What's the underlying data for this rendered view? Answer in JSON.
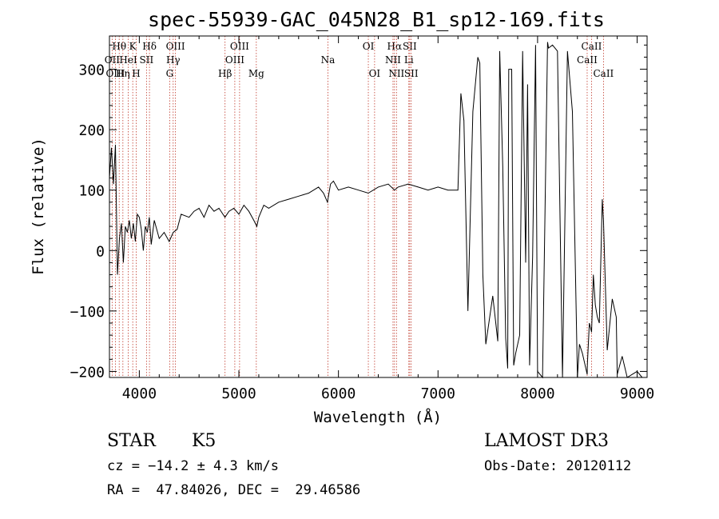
{
  "chart_data": {
    "type": "line",
    "title": "spec-55939-GAC_045N28_B1_sp12-169.fits",
    "xlabel": "Wavelength (Å)",
    "ylabel": "Flux (relative)",
    "xlim": [
      3700,
      9100
    ],
    "ylim": [
      -210,
      355
    ],
    "xticks": [
      4000,
      5000,
      6000,
      7000,
      8000,
      9000
    ],
    "yticks": [
      -200,
      -100,
      0,
      100,
      200,
      300
    ],
    "series": [
      {
        "name": "spectrum",
        "x": [
          3700,
          3720,
          3740,
          3760,
          3780,
          3800,
          3820,
          3840,
          3860,
          3880,
          3900,
          3920,
          3940,
          3960,
          3980,
          4000,
          4020,
          4040,
          4060,
          4080,
          4100,
          4120,
          4150,
          4200,
          4250,
          4300,
          4340,
          4380,
          4420,
          4500,
          4550,
          4600,
          4650,
          4700,
          4750,
          4800,
          4860,
          4900,
          4950,
          5000,
          5050,
          5100,
          5150,
          5180,
          5200,
          5250,
          5300,
          5400,
          5500,
          5600,
          5700,
          5800,
          5850,
          5890,
          5920,
          5950,
          6000,
          6100,
          6200,
          6300,
          6400,
          6500,
          6563,
          6600,
          6700,
          6800,
          6900,
          7000,
          7100,
          7200,
          7230,
          7260,
          7300,
          7350,
          7400,
          7420,
          7450,
          7480,
          7550,
          7600,
          7620,
          7650,
          7680,
          7700,
          7710,
          7740,
          7760,
          7780,
          7820,
          7850,
          7880,
          7900,
          7920,
          7950,
          7980,
          8000,
          8050,
          8100,
          8110,
          8150,
          8200,
          8250,
          8300,
          8350,
          8400,
          8420,
          8450,
          8498,
          8500,
          8520,
          8542,
          8560,
          8580,
          8600,
          8620,
          8650,
          8662,
          8700,
          8750,
          8790,
          8800,
          8850,
          8900,
          8950,
          9000,
          9050
        ],
        "y": [
          120,
          170,
          110,
          175,
          -40,
          20,
          45,
          -20,
          40,
          30,
          50,
          20,
          45,
          15,
          60,
          55,
          35,
          0,
          40,
          30,
          55,
          10,
          50,
          20,
          30,
          15,
          30,
          35,
          60,
          55,
          65,
          70,
          55,
          75,
          65,
          70,
          55,
          65,
          70,
          60,
          75,
          65,
          50,
          40,
          55,
          75,
          70,
          80,
          85,
          90,
          95,
          105,
          95,
          80,
          110,
          115,
          100,
          105,
          100,
          95,
          105,
          110,
          100,
          105,
          110,
          105,
          100,
          105,
          100,
          100,
          260,
          215,
          -100,
          230,
          320,
          310,
          -40,
          -155,
          -75,
          -150,
          330,
          140,
          -145,
          -195,
          300,
          300,
          -190,
          -170,
          -140,
          330,
          -20,
          275,
          -190,
          -10,
          340,
          -200,
          -210,
          345,
          335,
          340,
          330,
          -210,
          330,
          230,
          -210,
          -155,
          -170,
          -205,
          -190,
          -120,
          -135,
          -40,
          -90,
          -110,
          -120,
          85,
          50,
          -165,
          -80,
          -110,
          -205,
          -175,
          -210,
          -205,
          -200,
          -210
        ]
      }
    ],
    "spectral_lines": [
      {
        "label": "Hθ",
        "wave": 3798,
        "row": 1
      },
      {
        "label": "OII",
        "wave": 3727,
        "row": 2
      },
      {
        "label": "OIII",
        "wave": 3760,
        "row": 3
      },
      {
        "label": "K",
        "wave": 3934,
        "row": 1
      },
      {
        "label": "HeI",
        "wave": 3889,
        "row": 2
      },
      {
        "label": "Hη",
        "wave": 3835,
        "row": 3
      },
      {
        "label": "H",
        "wave": 3969,
        "row": 3
      },
      {
        "label": "SII",
        "wave": 4072,
        "row": 2
      },
      {
        "label": "Hδ",
        "wave": 4102,
        "row": 1
      },
      {
        "label": "OIII",
        "wave": 4363,
        "row": 1
      },
      {
        "label": "Hγ",
        "wave": 4340,
        "row": 2
      },
      {
        "label": "G",
        "wave": 4305,
        "row": 3
      },
      {
        "label": "OIII",
        "wave": 5007,
        "row": 1
      },
      {
        "label": "OIII",
        "wave": 4959,
        "row": 2
      },
      {
        "label": "Hβ",
        "wave": 4861,
        "row": 3
      },
      {
        "label": "Mg",
        "wave": 5175,
        "row": 3
      },
      {
        "label": "Na",
        "wave": 5894,
        "row": 2
      },
      {
        "label": "OI",
        "wave": 6300,
        "row": 1
      },
      {
        "label": "OI",
        "wave": 6363,
        "row": 3
      },
      {
        "label": "Hα",
        "wave": 6563,
        "row": 1
      },
      {
        "label": "SII",
        "wave": 6716,
        "row": 1
      },
      {
        "label": "NII",
        "wave": 6548,
        "row": 2
      },
      {
        "label": "Li",
        "wave": 6707,
        "row": 2
      },
      {
        "label": "NII",
        "wave": 6583,
        "row": 3
      },
      {
        "label": "SII",
        "wave": 6731,
        "row": 3
      },
      {
        "label": "CaII",
        "wave": 8542,
        "row": 1
      },
      {
        "label": "CaII",
        "wave": 8498,
        "row": 2
      },
      {
        "label": "CaII",
        "wave": 8662,
        "row": 3
      }
    ]
  },
  "info": {
    "object_class": "STAR",
    "subclass": "K5",
    "survey": "LAMOST DR3",
    "cz": "cz = −14.2 ± 4.3 km/s",
    "obs_date": "Obs-Date: 20120112",
    "coords": "RA =  47.84026, DEC =  29.46586"
  },
  "colors": {
    "spectrum": "#000000",
    "line_marker": "#c0392b",
    "axis": "#000000"
  }
}
